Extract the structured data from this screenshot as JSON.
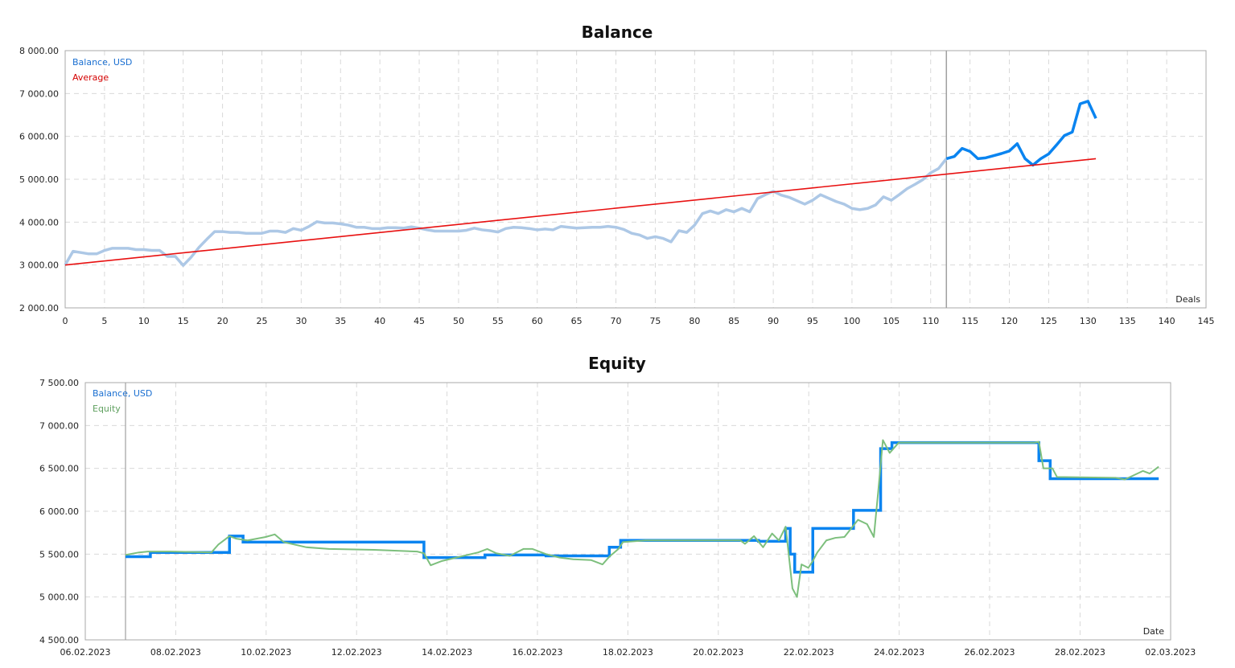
{
  "chart_data": [
    {
      "type": "line",
      "title": "Balance",
      "xlabel": "Deals",
      "ylabel": "",
      "xlim": [
        0,
        145
      ],
      "ylim": [
        2000,
        8000
      ],
      "x_ticks": [
        0,
        5,
        10,
        15,
        20,
        25,
        30,
        35,
        40,
        45,
        50,
        55,
        60,
        65,
        70,
        75,
        80,
        85,
        90,
        95,
        100,
        105,
        110,
        115,
        120,
        125,
        130,
        135,
        140,
        145
      ],
      "y_ticks": [
        "2 000.00",
        "3 000.00",
        "4 000.00",
        "5 000.00",
        "6 000.00",
        "7 000.00",
        "8 000.00"
      ],
      "grid": true,
      "legend": [
        "Balance, USD",
        "Average"
      ],
      "legend_position": "top-left",
      "marker_line_x": 112,
      "series": [
        {
          "name": "Balance, USD",
          "color_before_marker": "#adc8e6",
          "color_after_marker": "#0a84f0",
          "x": [
            0,
            1,
            2,
            3,
            4,
            5,
            6,
            7,
            8,
            9,
            10,
            11,
            12,
            13,
            14,
            15,
            16,
            17,
            18,
            19,
            20,
            21,
            22,
            23,
            24,
            25,
            26,
            27,
            28,
            29,
            30,
            31,
            32,
            33,
            34,
            35,
            36,
            37,
            38,
            39,
            40,
            41,
            42,
            43,
            44,
            45,
            46,
            47,
            48,
            49,
            50,
            51,
            52,
            53,
            54,
            55,
            56,
            57,
            58,
            59,
            60,
            61,
            62,
            63,
            64,
            65,
            66,
            67,
            68,
            69,
            70,
            71,
            72,
            73,
            74,
            75,
            76,
            77,
            78,
            79,
            80,
            81,
            82,
            83,
            84,
            85,
            86,
            87,
            88,
            89,
            90,
            91,
            92,
            93,
            94,
            95,
            96,
            97,
            98,
            99,
            100,
            101,
            102,
            103,
            104,
            105,
            106,
            107,
            108,
            109,
            110,
            111,
            112,
            113,
            114,
            115,
            116,
            117,
            118,
            119,
            120,
            121,
            122,
            123,
            124,
            125,
            126,
            127,
            128,
            129,
            130,
            131
          ],
          "values": [
            3000,
            3320,
            3290,
            3260,
            3260,
            3340,
            3390,
            3390,
            3390,
            3360,
            3360,
            3340,
            3340,
            3200,
            3200,
            2990,
            3180,
            3410,
            3600,
            3780,
            3780,
            3760,
            3760,
            3740,
            3740,
            3740,
            3790,
            3790,
            3760,
            3850,
            3810,
            3900,
            4010,
            3980,
            3980,
            3960,
            3930,
            3880,
            3880,
            3850,
            3850,
            3870,
            3870,
            3860,
            3890,
            3860,
            3820,
            3790,
            3790,
            3790,
            3790,
            3810,
            3860,
            3820,
            3800,
            3770,
            3850,
            3880,
            3870,
            3850,
            3820,
            3840,
            3820,
            3900,
            3880,
            3860,
            3870,
            3880,
            3880,
            3900,
            3880,
            3830,
            3740,
            3700,
            3620,
            3660,
            3620,
            3540,
            3800,
            3760,
            3930,
            4200,
            4260,
            4200,
            4290,
            4240,
            4320,
            4240,
            4550,
            4640,
            4720,
            4630,
            4580,
            4500,
            4420,
            4510,
            4640,
            4560,
            4480,
            4420,
            4320,
            4290,
            4320,
            4400,
            4590,
            4510,
            4640,
            4780,
            4880,
            4990,
            5150,
            5250,
            5480,
            5530,
            5720,
            5650,
            5480,
            5500,
            5550,
            5600,
            5660,
            5830,
            5480,
            5330,
            5480,
            5590,
            5800,
            6020,
            6100,
            6760,
            6820,
            6420
          ]
        },
        {
          "name": "Average",
          "color": "#e81010",
          "x": [
            0,
            131
          ],
          "values": [
            3000,
            5480
          ]
        }
      ]
    },
    {
      "type": "line",
      "title": "Equity",
      "xlabel": "Date",
      "ylabel": "",
      "ylim": [
        4500,
        7500
      ],
      "x_ticks": [
        "06.02.2023",
        "08.02.2023",
        "10.02.2023",
        "12.02.2023",
        "14.02.2023",
        "16.02.2023",
        "18.02.2023",
        "20.02.2023",
        "22.02.2023",
        "24.02.2023",
        "26.02.2023",
        "28.02.2023",
        "02.03.2023"
      ],
      "y_ticks": [
        "4 500.00",
        "5 000.00",
        "5 500.00",
        "6 000.00",
        "6 500.00",
        "7 000.00",
        "7 500.00"
      ],
      "grid": true,
      "legend": [
        "Balance, USD",
        "Equity"
      ],
      "legend_position": "top-left",
      "series": [
        {
          "name": "Balance, USD",
          "color": "#0a84f0",
          "step": true,
          "points_day_offset_value": [
            [
              0.0,
              5470
            ],
            [
              0.55,
              5470
            ],
            [
              0.55,
              5520
            ],
            [
              2.0,
              5520
            ],
            [
              2.0,
              5520
            ],
            [
              2.3,
              5520
            ],
            [
              2.3,
              5710
            ],
            [
              2.6,
              5710
            ],
            [
              2.6,
              5640
            ],
            [
              6.6,
              5640
            ],
            [
              6.6,
              5460
            ],
            [
              7.95,
              5460
            ],
            [
              7.95,
              5490
            ],
            [
              9.3,
              5490
            ],
            [
              9.3,
              5480
            ],
            [
              10.7,
              5480
            ],
            [
              10.7,
              5580
            ],
            [
              10.95,
              5580
            ],
            [
              10.95,
              5660
            ],
            [
              14.0,
              5660
            ],
            [
              14.0,
              5650
            ],
            [
              14.6,
              5650
            ],
            [
              14.6,
              5800
            ],
            [
              14.7,
              5800
            ],
            [
              14.7,
              5500
            ],
            [
              14.8,
              5500
            ],
            [
              14.8,
              5290
            ],
            [
              15.2,
              5290
            ],
            [
              15.2,
              5800
            ],
            [
              16.1,
              5800
            ],
            [
              16.1,
              6010
            ],
            [
              16.7,
              6010
            ],
            [
              16.7,
              6730
            ],
            [
              16.95,
              6730
            ],
            [
              16.95,
              6800
            ],
            [
              20.2,
              6800
            ],
            [
              20.2,
              6590
            ],
            [
              20.45,
              6590
            ],
            [
              20.45,
              6380
            ],
            [
              22.85,
              6380
            ]
          ]
        },
        {
          "name": "Equity",
          "color": "#7dbf7d",
          "points_day_offset_value": [
            [
              0.0,
              5490
            ],
            [
              0.3,
              5520
            ],
            [
              0.5,
              5530
            ],
            [
              1.0,
              5530
            ],
            [
              1.9,
              5520
            ],
            [
              2.05,
              5610
            ],
            [
              2.3,
              5710
            ],
            [
              2.45,
              5680
            ],
            [
              2.7,
              5660
            ],
            [
              3.1,
              5700
            ],
            [
              3.3,
              5730
            ],
            [
              3.5,
              5640
            ],
            [
              4.0,
              5580
            ],
            [
              4.5,
              5560
            ],
            [
              5.5,
              5550
            ],
            [
              6.45,
              5530
            ],
            [
              6.6,
              5510
            ],
            [
              6.75,
              5370
            ],
            [
              7.0,
              5420
            ],
            [
              7.4,
              5470
            ],
            [
              7.8,
              5520
            ],
            [
              8.0,
              5560
            ],
            [
              8.2,
              5510
            ],
            [
              8.5,
              5480
            ],
            [
              8.8,
              5560
            ],
            [
              9.0,
              5560
            ],
            [
              9.3,
              5500
            ],
            [
              9.6,
              5460
            ],
            [
              9.9,
              5440
            ],
            [
              10.3,
              5430
            ],
            [
              10.55,
              5380
            ],
            [
              10.7,
              5470
            ],
            [
              10.9,
              5560
            ],
            [
              11.0,
              5640
            ],
            [
              11.5,
              5660
            ],
            [
              13.6,
              5660
            ],
            [
              13.7,
              5620
            ],
            [
              13.9,
              5710
            ],
            [
              14.1,
              5580
            ],
            [
              14.3,
              5740
            ],
            [
              14.45,
              5660
            ],
            [
              14.6,
              5820
            ],
            [
              14.75,
              5100
            ],
            [
              14.85,
              5000
            ],
            [
              14.95,
              5380
            ],
            [
              15.1,
              5340
            ],
            [
              15.2,
              5420
            ],
            [
              15.3,
              5520
            ],
            [
              15.5,
              5660
            ],
            [
              15.7,
              5690
            ],
            [
              15.9,
              5700
            ],
            [
              16.2,
              5900
            ],
            [
              16.4,
              5850
            ],
            [
              16.55,
              5700
            ],
            [
              16.65,
              6250
            ],
            [
              16.75,
              6830
            ],
            [
              16.9,
              6680
            ],
            [
              17.1,
              6800
            ],
            [
              20.1,
              6800
            ],
            [
              20.2,
              6810
            ],
            [
              20.3,
              6500
            ],
            [
              20.5,
              6500
            ],
            [
              20.6,
              6400
            ],
            [
              21.9,
              6390
            ],
            [
              22.1,
              6370
            ],
            [
              22.5,
              6470
            ],
            [
              22.65,
              6440
            ],
            [
              22.85,
              6520
            ]
          ]
        }
      ]
    }
  ],
  "balance_chart": {
    "title": "Balance",
    "legend_balance": "Balance, USD",
    "legend_average": "Average",
    "axis_label": "Deals",
    "colors": {
      "balance_faded": "#adc8e6",
      "balance": "#0a84f0",
      "average": "#e81010",
      "grid": "#d9d9d9",
      "frame": "#aaaaaa"
    }
  },
  "equity_chart": {
    "title": "Equity",
    "legend_balance": "Balance, USD",
    "legend_equity": "Equity",
    "axis_label": "Date",
    "colors": {
      "balance": "#0a84f0",
      "equity": "#7dbf7d"
    }
  }
}
